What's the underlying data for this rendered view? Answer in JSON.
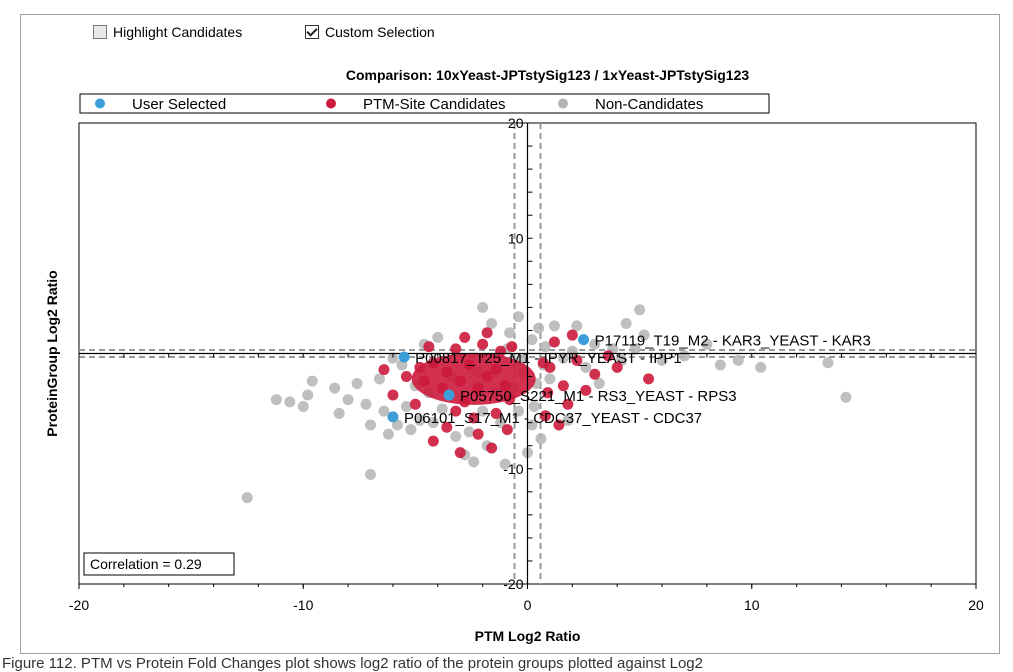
{
  "toolbar": {
    "highlight_label": "Highlight Candidates",
    "highlight_checked": false,
    "custom_label": "Custom Selection",
    "custom_checked": true
  },
  "caption": "Figure 112. PTM vs Protein Fold Changes plot shows log2 ratio of the protein groups plotted against Log2",
  "colors": {
    "user_selected": "#3b9ed8",
    "candidates": "#cc1a3c",
    "non_candidates": "#b4b4b4"
  },
  "chart_data": {
    "type": "scatter",
    "title": "Comparison: 10xYeast-JPTstySig123 / 1xYeast-JPTstySig123",
    "xlabel": "PTM Log2 Ratio",
    "ylabel": "ProteinGroup Log2 Ratio",
    "xlim": [
      -20,
      20
    ],
    "ylim": [
      -20,
      20
    ],
    "xticks": [
      -20,
      -10,
      0,
      10,
      20
    ],
    "yticks": [
      -20,
      -10,
      10,
      20
    ],
    "legend": [
      "User Selected",
      "PTM-Site Candidates",
      "Non-Candidates"
    ],
    "legend_position": "top",
    "correlation_label": "Correlation = 0.29",
    "thresholds": {
      "x": [
        -0.58,
        0.58
      ],
      "y": [
        -0.3,
        0.3
      ]
    },
    "series": [
      {
        "name": "User Selected",
        "points": [
          {
            "x": 2.5,
            "y": 1.2,
            "label": "P17119_T19_M2 - KAR3_YEAST - KAR3"
          },
          {
            "x": -5.5,
            "y": -0.3,
            "label": "P00817_T25_M1 - IPYR_YEAST - IPP1"
          },
          {
            "x": -3.5,
            "y": -3.6,
            "label": "P05750_S221_M1 - RS3_YEAST - RPS3"
          },
          {
            "x": -6.0,
            "y": -5.5,
            "label": "P06101_S17_M1 - CDC37_YEAST - CDC37"
          }
        ]
      },
      {
        "name": "PTM-Site Candidates",
        "points": [
          {
            "x": -4.8,
            "y": -1.2
          },
          {
            "x": -4.2,
            "y": -0.8
          },
          {
            "x": -3.6,
            "y": -1.6
          },
          {
            "x": -3.0,
            "y": -2.4
          },
          {
            "x": -2.6,
            "y": -1.0
          },
          {
            "x": -2.2,
            "y": -3.0
          },
          {
            "x": -1.8,
            "y": -2.0
          },
          {
            "x": -1.4,
            "y": -1.4
          },
          {
            "x": -1.0,
            "y": -2.8
          },
          {
            "x": -2.8,
            "y": -4.2
          },
          {
            "x": -3.8,
            "y": -3.0
          },
          {
            "x": -4.6,
            "y": -2.4
          },
          {
            "x": -5.4,
            "y": -2.0
          },
          {
            "x": -6.4,
            "y": -1.4
          },
          {
            "x": -3.2,
            "y": 0.4
          },
          {
            "x": -2.0,
            "y": 0.8
          },
          {
            "x": -1.2,
            "y": 0.2
          },
          {
            "x": -2.4,
            "y": -5.6
          },
          {
            "x": -3.6,
            "y": -6.4
          },
          {
            "x": -4.2,
            "y": -7.6
          },
          {
            "x": -2.2,
            "y": -7.0
          },
          {
            "x": -1.4,
            "y": -5.2
          },
          {
            "x": -0.8,
            "y": -4.0
          },
          {
            "x": -1.6,
            "y": -8.2
          },
          {
            "x": -3.2,
            "y": -5.0
          },
          {
            "x": 1.0,
            "y": -1.2
          },
          {
            "x": 1.6,
            "y": -2.8
          },
          {
            "x": 2.2,
            "y": -0.6
          },
          {
            "x": 3.0,
            "y": -1.8
          },
          {
            "x": 2.6,
            "y": -3.2
          },
          {
            "x": 1.8,
            "y": -4.4
          },
          {
            "x": 0.8,
            "y": -5.4
          },
          {
            "x": 1.2,
            "y": 1.0
          },
          {
            "x": 2.0,
            "y": 1.6
          },
          {
            "x": 3.6,
            "y": -0.2
          },
          {
            "x": 5.4,
            "y": -2.2
          },
          {
            "x": 4.0,
            "y": -1.2
          },
          {
            "x": -2.8,
            "y": 1.4
          },
          {
            "x": -4.4,
            "y": 0.6
          },
          {
            "x": -1.8,
            "y": 1.8
          },
          {
            "x": 0.9,
            "y": -3.4
          },
          {
            "x": -0.9,
            "y": -6.6
          },
          {
            "x": -5.0,
            "y": -4.4
          },
          {
            "x": -6.0,
            "y": -3.6
          },
          {
            "x": -3.0,
            "y": -8.6
          },
          {
            "x": 1.4,
            "y": -6.2
          },
          {
            "x": 0.7,
            "y": -0.8
          },
          {
            "x": -0.7,
            "y": 0.6
          }
        ]
      },
      {
        "name": "Non-Candidates",
        "points": [
          {
            "x": -12.5,
            "y": -12.5
          },
          {
            "x": -11.2,
            "y": -4.0
          },
          {
            "x": -10.6,
            "y": -4.2
          },
          {
            "x": -9.8,
            "y": -3.6
          },
          {
            "x": -10.0,
            "y": -4.6
          },
          {
            "x": -9.6,
            "y": -2.4
          },
          {
            "x": -8.6,
            "y": -3.0
          },
          {
            "x": -8.4,
            "y": -5.2
          },
          {
            "x": -8.0,
            "y": -4.0
          },
          {
            "x": -7.6,
            "y": -2.6
          },
          {
            "x": -7.2,
            "y": -4.4
          },
          {
            "x": -7.0,
            "y": -10.5
          },
          {
            "x": -7.0,
            "y": -6.2
          },
          {
            "x": -6.6,
            "y": -2.2
          },
          {
            "x": -6.4,
            "y": -5.0
          },
          {
            "x": -6.0,
            "y": -0.4
          },
          {
            "x": -6.2,
            "y": -7.0
          },
          {
            "x": -5.8,
            "y": -6.2
          },
          {
            "x": -5.4,
            "y": -4.6
          },
          {
            "x": -5.2,
            "y": -6.6
          },
          {
            "x": -5.0,
            "y": -2.8
          },
          {
            "x": -4.8,
            "y": -5.8
          },
          {
            "x": -4.6,
            "y": 0.8
          },
          {
            "x": -4.2,
            "y": -6.0
          },
          {
            "x": -4.0,
            "y": 1.4
          },
          {
            "x": -3.8,
            "y": -4.8
          },
          {
            "x": -3.2,
            "y": -7.2
          },
          {
            "x": -2.6,
            "y": -6.8
          },
          {
            "x": -2.8,
            "y": -8.8
          },
          {
            "x": -2.4,
            "y": -9.4
          },
          {
            "x": -2.0,
            "y": 4.0
          },
          {
            "x": -1.8,
            "y": -8.0
          },
          {
            "x": -1.6,
            "y": 2.6
          },
          {
            "x": -1.2,
            "y": -6.0
          },
          {
            "x": -1.0,
            "y": -9.6
          },
          {
            "x": -0.8,
            "y": 1.8
          },
          {
            "x": -0.6,
            "y": -3.0
          },
          {
            "x": -0.4,
            "y": 3.2
          },
          {
            "x": -0.2,
            "y": -1.6
          },
          {
            "x": 0.0,
            "y": -8.6
          },
          {
            "x": 0.2,
            "y": 1.2
          },
          {
            "x": 0.3,
            "y": -4.6
          },
          {
            "x": 0.5,
            "y": 2.2
          },
          {
            "x": 0.6,
            "y": -7.4
          },
          {
            "x": 0.8,
            "y": 0.6
          },
          {
            "x": 1.0,
            "y": -2.2
          },
          {
            "x": 1.2,
            "y": 2.4
          },
          {
            "x": 1.6,
            "y": -0.4
          },
          {
            "x": 1.8,
            "y": -5.8
          },
          {
            "x": 2.0,
            "y": 0.2
          },
          {
            "x": 2.2,
            "y": 2.4
          },
          {
            "x": 2.6,
            "y": -1.2
          },
          {
            "x": 3.0,
            "y": 0.8
          },
          {
            "x": 3.2,
            "y": -2.6
          },
          {
            "x": 3.8,
            "y": 0.4
          },
          {
            "x": 4.2,
            "y": -0.6
          },
          {
            "x": 4.4,
            "y": 2.6
          },
          {
            "x": 4.8,
            "y": 0.4
          },
          {
            "x": 5.2,
            "y": 1.6
          },
          {
            "x": 5.0,
            "y": 3.8
          },
          {
            "x": 6.0,
            "y": -0.6
          },
          {
            "x": 7.0,
            "y": -0.2
          },
          {
            "x": 8.0,
            "y": 0.8
          },
          {
            "x": 8.6,
            "y": -1.0
          },
          {
            "x": 9.4,
            "y": -0.6
          },
          {
            "x": 10.4,
            "y": -1.2
          },
          {
            "x": 13.4,
            "y": -0.8
          },
          {
            "x": 14.2,
            "y": -3.8
          },
          {
            "x": -3.4,
            "y": -2.0
          },
          {
            "x": -2.2,
            "y": -1.6
          },
          {
            "x": -1.4,
            "y": -3.4
          },
          {
            "x": -0.4,
            "y": -5.0
          },
          {
            "x": 0.4,
            "y": -2.6
          },
          {
            "x": -0.3,
            "y": -0.6
          },
          {
            "x": 0.2,
            "y": -6.2
          },
          {
            "x": -0.9,
            "y": 0.4
          },
          {
            "x": 0.7,
            "y": -1.0
          },
          {
            "x": -5.6,
            "y": -1.0
          },
          {
            "x": -4.4,
            "y": -3.4
          },
          {
            "x": -2.0,
            "y": -5.0
          }
        ]
      }
    ]
  }
}
